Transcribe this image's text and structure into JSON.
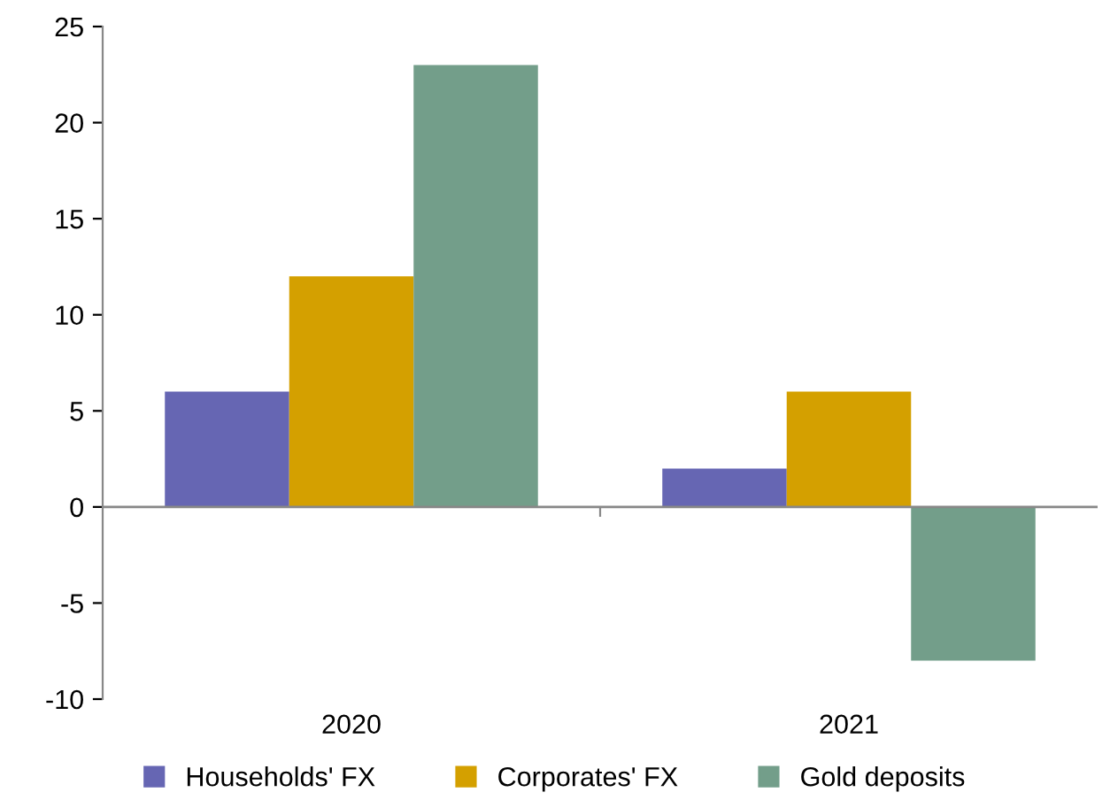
{
  "chart_data": {
    "type": "bar",
    "categories": [
      "2020",
      "2021"
    ],
    "series": [
      {
        "name": "Households' FX",
        "color": "#6666b3",
        "values": [
          6,
          2
        ]
      },
      {
        "name": "Corporates' FX",
        "color": "#d4a000",
        "values": [
          12,
          6
        ]
      },
      {
        "name": "Gold deposits",
        "color": "#739e8a",
        "values": [
          23,
          -8
        ]
      }
    ],
    "ylim": [
      -10,
      25
    ],
    "yticks": [
      -10,
      -5,
      0,
      5,
      10,
      15,
      20,
      25
    ],
    "grid": false,
    "ref_lines": [
      {
        "axis": "y",
        "value": 0,
        "color": "#888888"
      }
    ],
    "legend": "bottom"
  }
}
